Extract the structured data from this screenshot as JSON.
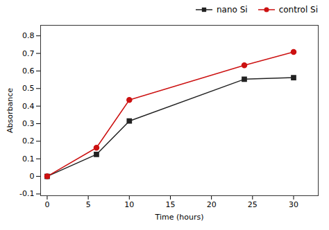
{
  "chart_data": {
    "type": "line",
    "xlabel": "Time (hours)",
    "ylabel": "Absorbance",
    "x": [
      0,
      6,
      10,
      24,
      30
    ],
    "series": [
      {
        "name": "nano Si",
        "color": "#222222",
        "marker": "square",
        "values": [
          0.0,
          0.125,
          0.315,
          0.553,
          0.562
        ],
        "errors": [
          0.004,
          0.004,
          0.006,
          0.006,
          0.006
        ]
      },
      {
        "name": "control Si",
        "color": "#cc1111",
        "marker": "circle",
        "values": [
          0.0,
          0.163,
          0.435,
          0.632,
          0.708
        ],
        "errors": [
          0.004,
          0.004,
          0.008,
          0.008,
          0.008
        ]
      }
    ],
    "xlim": [
      -0.8,
      33
    ],
    "ylim": [
      -0.11,
      0.86
    ],
    "xticks": [
      0,
      5,
      10,
      15,
      20,
      25,
      30
    ],
    "yticks": [
      -0.1,
      0,
      0.1,
      0.2,
      0.3,
      0.4,
      0.5,
      0.6,
      0.7,
      0.8
    ],
    "grid": false,
    "legend": "upper right"
  }
}
